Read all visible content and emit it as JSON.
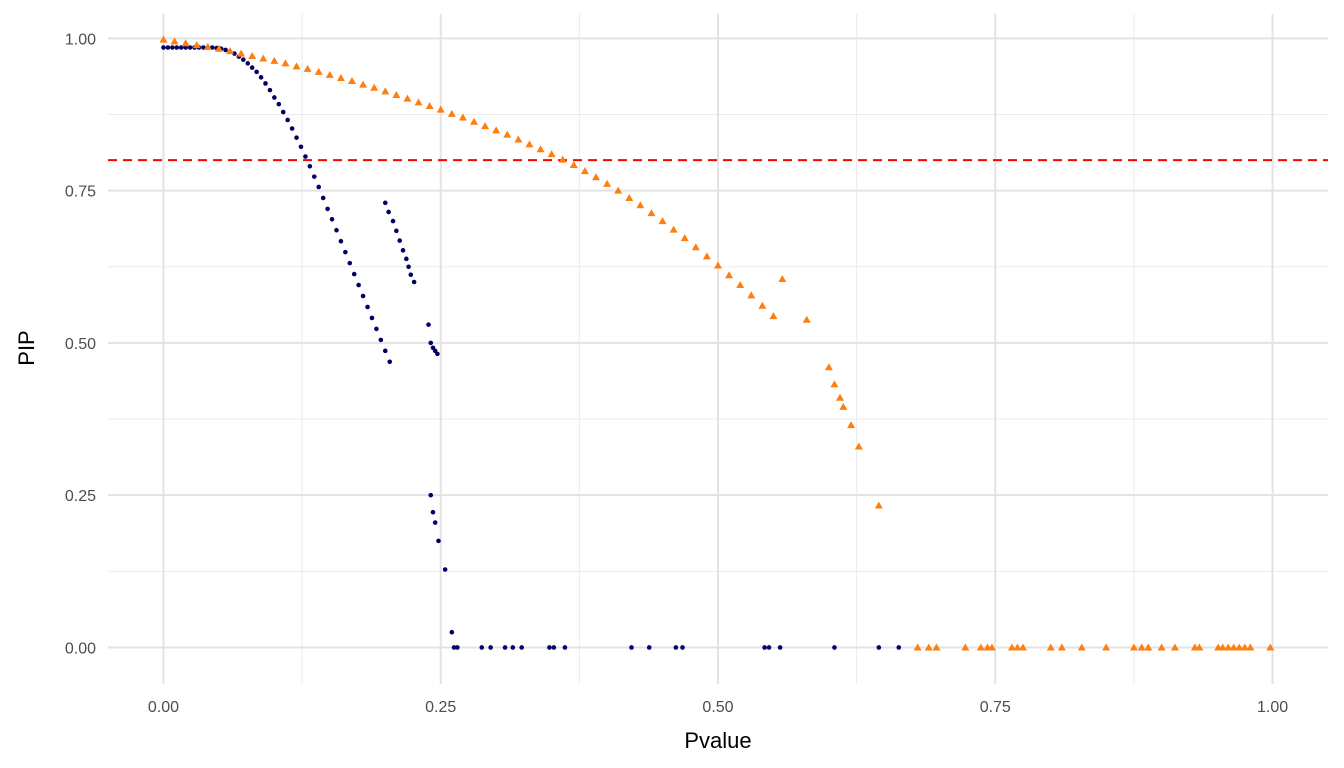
{
  "chart_data": {
    "type": "scatter",
    "title": "",
    "xlabel": "Pvalue",
    "ylabel": "PIP",
    "xlim": [
      -0.05,
      1.05
    ],
    "ylim": [
      -0.06,
      1.04
    ],
    "x_ticks": [
      0,
      0.25,
      0.5,
      0.75,
      1
    ],
    "x_tick_labels": [
      "0.00",
      "0.25",
      "0.50",
      "0.75",
      "1.00"
    ],
    "y_ticks": [
      0,
      0.25,
      0.5,
      0.75,
      1
    ],
    "y_tick_labels": [
      "0.00",
      "0.25",
      "0.50",
      "0.75",
      "1.00"
    ],
    "grid": true,
    "legend": "none",
    "reference_line": {
      "y": 0.8,
      "color": "#ff0000",
      "style": "dashed"
    },
    "series": [
      {
        "color": "#000066",
        "marker": "circle",
        "points": [
          [
            0.0,
            0.985
          ],
          [
            0.004,
            0.985
          ],
          [
            0.008,
            0.985
          ],
          [
            0.012,
            0.985
          ],
          [
            0.016,
            0.985
          ],
          [
            0.02,
            0.985
          ],
          [
            0.024,
            0.985
          ],
          [
            0.028,
            0.985
          ],
          [
            0.032,
            0.985
          ],
          [
            0.036,
            0.985
          ],
          [
            0.04,
            0.985
          ],
          [
            0.044,
            0.985
          ],
          [
            0.048,
            0.984
          ],
          [
            0.052,
            0.983
          ],
          [
            0.056,
            0.981
          ],
          [
            0.06,
            0.978
          ],
          [
            0.064,
            0.975
          ],
          [
            0.068,
            0.97
          ],
          [
            0.072,
            0.965
          ],
          [
            0.076,
            0.959
          ],
          [
            0.08,
            0.952
          ],
          [
            0.084,
            0.945
          ],
          [
            0.088,
            0.936
          ],
          [
            0.092,
            0.926
          ],
          [
            0.096,
            0.915
          ],
          [
            0.1,
            0.903
          ],
          [
            0.104,
            0.892
          ],
          [
            0.108,
            0.879
          ],
          [
            0.112,
            0.866
          ],
          [
            0.116,
            0.852
          ],
          [
            0.12,
            0.837
          ],
          [
            0.124,
            0.822
          ],
          [
            0.128,
            0.806
          ],
          [
            0.132,
            0.79
          ],
          [
            0.136,
            0.773
          ],
          [
            0.14,
            0.756
          ],
          [
            0.144,
            0.738
          ],
          [
            0.148,
            0.72
          ],
          [
            0.152,
            0.703
          ],
          [
            0.156,
            0.685
          ],
          [
            0.16,
            0.667
          ],
          [
            0.164,
            0.649
          ],
          [
            0.168,
            0.631
          ],
          [
            0.172,
            0.613
          ],
          [
            0.176,
            0.595
          ],
          [
            0.18,
            0.577
          ],
          [
            0.184,
            0.559
          ],
          [
            0.188,
            0.541
          ],
          [
            0.192,
            0.523
          ],
          [
            0.196,
            0.505
          ],
          [
            0.2,
            0.487
          ],
          [
            0.204,
            0.469
          ],
          [
            0.2,
            0.73
          ],
          [
            0.203,
            0.715
          ],
          [
            0.207,
            0.7
          ],
          [
            0.21,
            0.684
          ],
          [
            0.213,
            0.668
          ],
          [
            0.216,
            0.652
          ],
          [
            0.219,
            0.638
          ],
          [
            0.221,
            0.625
          ],
          [
            0.223,
            0.612
          ],
          [
            0.226,
            0.6
          ],
          [
            0.239,
            0.53
          ],
          [
            0.241,
            0.5
          ],
          [
            0.243,
            0.492
          ],
          [
            0.245,
            0.487
          ],
          [
            0.247,
            0.482
          ],
          [
            0.241,
            0.25
          ],
          [
            0.243,
            0.222
          ],
          [
            0.245,
            0.205
          ],
          [
            0.248,
            0.175
          ],
          [
            0.254,
            0.128
          ],
          [
            0.26,
            0.025
          ],
          [
            0.262,
            0.0
          ],
          [
            0.265,
            0.0
          ],
          [
            0.287,
            0.0
          ],
          [
            0.295,
            0.0
          ],
          [
            0.308,
            0.0
          ],
          [
            0.315,
            0.0
          ],
          [
            0.323,
            0.0
          ],
          [
            0.348,
            0.0
          ],
          [
            0.352,
            0.0
          ],
          [
            0.362,
            0.0
          ],
          [
            0.422,
            0.0
          ],
          [
            0.438,
            0.0
          ],
          [
            0.462,
            0.0
          ],
          [
            0.468,
            0.0
          ],
          [
            0.542,
            0.0
          ],
          [
            0.546,
            0.0
          ],
          [
            0.556,
            0.0
          ],
          [
            0.605,
            0.0
          ],
          [
            0.645,
            0.0
          ],
          [
            0.663,
            0.0
          ]
        ]
      },
      {
        "color": "#ff7f0e",
        "marker": "triangle",
        "points": [
          [
            0.0,
            0.998
          ],
          [
            0.01,
            0.995
          ],
          [
            0.02,
            0.992
          ],
          [
            0.03,
            0.989
          ],
          [
            0.04,
            0.986
          ],
          [
            0.05,
            0.983
          ],
          [
            0.06,
            0.979
          ],
          [
            0.07,
            0.975
          ],
          [
            0.08,
            0.971
          ],
          [
            0.09,
            0.967
          ],
          [
            0.1,
            0.963
          ],
          [
            0.11,
            0.959
          ],
          [
            0.12,
            0.954
          ],
          [
            0.13,
            0.95
          ],
          [
            0.14,
            0.945
          ],
          [
            0.15,
            0.94
          ],
          [
            0.16,
            0.935
          ],
          [
            0.17,
            0.93
          ],
          [
            0.18,
            0.924
          ],
          [
            0.19,
            0.919
          ],
          [
            0.2,
            0.913
          ],
          [
            0.21,
            0.907
          ],
          [
            0.22,
            0.901
          ],
          [
            0.23,
            0.895
          ],
          [
            0.24,
            0.889
          ],
          [
            0.25,
            0.883
          ],
          [
            0.26,
            0.876
          ],
          [
            0.27,
            0.87
          ],
          [
            0.28,
            0.863
          ],
          [
            0.29,
            0.856
          ],
          [
            0.3,
            0.849
          ],
          [
            0.31,
            0.842
          ],
          [
            0.32,
            0.834
          ],
          [
            0.33,
            0.826
          ],
          [
            0.34,
            0.818
          ],
          [
            0.35,
            0.81
          ],
          [
            0.36,
            0.801
          ],
          [
            0.37,
            0.792
          ],
          [
            0.38,
            0.782
          ],
          [
            0.39,
            0.772
          ],
          [
            0.4,
            0.761
          ],
          [
            0.41,
            0.75
          ],
          [
            0.42,
            0.738
          ],
          [
            0.43,
            0.726
          ],
          [
            0.44,
            0.713
          ],
          [
            0.45,
            0.7
          ],
          [
            0.46,
            0.686
          ],
          [
            0.47,
            0.672
          ],
          [
            0.48,
            0.657
          ],
          [
            0.49,
            0.642
          ],
          [
            0.5,
            0.627
          ],
          [
            0.51,
            0.611
          ],
          [
            0.52,
            0.595
          ],
          [
            0.53,
            0.578
          ],
          [
            0.54,
            0.561
          ],
          [
            0.55,
            0.544
          ],
          [
            0.558,
            0.605
          ],
          [
            0.58,
            0.538
          ],
          [
            0.6,
            0.46
          ],
          [
            0.605,
            0.432
          ],
          [
            0.61,
            0.41
          ],
          [
            0.613,
            0.395
          ],
          [
            0.62,
            0.365
          ],
          [
            0.627,
            0.33
          ],
          [
            0.645,
            0.233
          ],
          [
            0.68,
            0.0
          ],
          [
            0.69,
            0.0
          ],
          [
            0.697,
            0.0
          ],
          [
            0.723,
            0.0
          ],
          [
            0.737,
            0.0
          ],
          [
            0.743,
            0.0
          ],
          [
            0.747,
            0.0
          ],
          [
            0.765,
            0.0
          ],
          [
            0.77,
            0.0
          ],
          [
            0.775,
            0.0
          ],
          [
            0.8,
            0.0
          ],
          [
            0.81,
            0.0
          ],
          [
            0.828,
            0.0
          ],
          [
            0.85,
            0.0
          ],
          [
            0.875,
            0.0
          ],
          [
            0.882,
            0.0
          ],
          [
            0.888,
            0.0
          ],
          [
            0.9,
            0.0
          ],
          [
            0.912,
            0.0
          ],
          [
            0.93,
            0.0
          ],
          [
            0.934,
            0.0
          ],
          [
            0.951,
            0.0
          ],
          [
            0.955,
            0.0
          ],
          [
            0.96,
            0.0
          ],
          [
            0.965,
            0.0
          ],
          [
            0.97,
            0.0
          ],
          [
            0.975,
            0.0
          ],
          [
            0.98,
            0.0
          ],
          [
            0.998,
            0.0
          ]
        ]
      }
    ]
  }
}
